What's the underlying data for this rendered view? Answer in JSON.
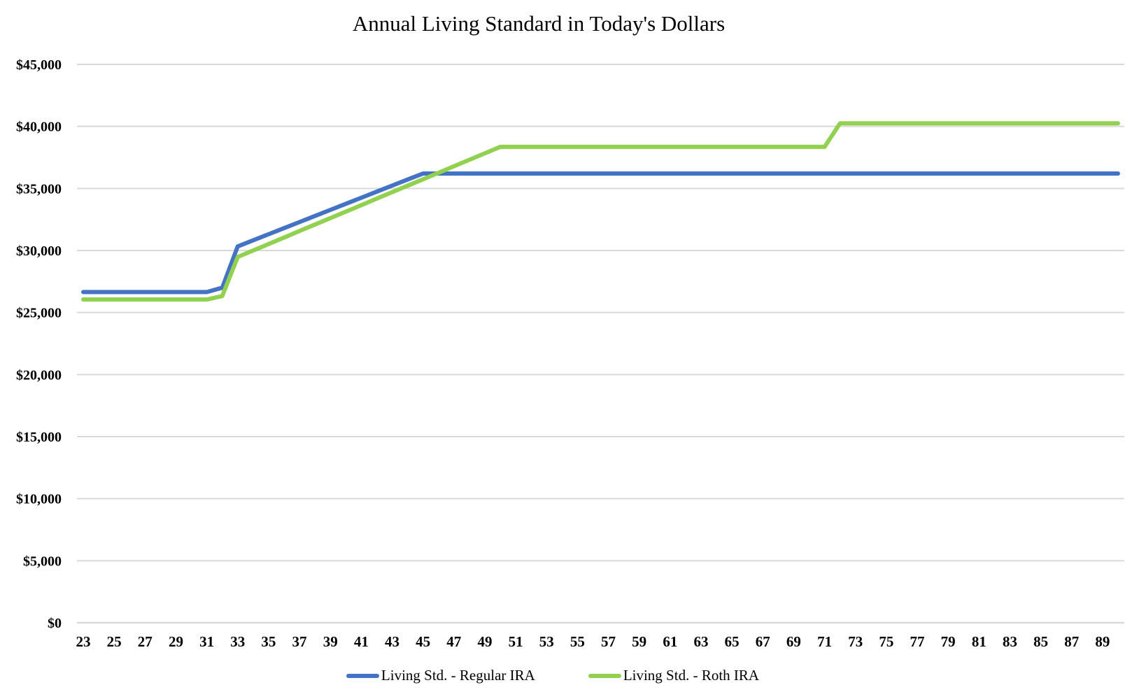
{
  "chart_data": {
    "type": "line",
    "title": "Annual Living Standard in Today's Dollars",
    "xlabel": "",
    "ylabel": "",
    "grid": true,
    "gridline_color": "#D9D9D9",
    "text_color": "#000000",
    "background_color": "#ffffff",
    "legend_position": "bottom",
    "ylim": [
      0,
      45000
    ],
    "y_tick_step": 5000,
    "y_ticks": [
      {
        "value": 0,
        "label": "$0"
      },
      {
        "value": 5000,
        "label": "$5,000"
      },
      {
        "value": 10000,
        "label": "$10,000"
      },
      {
        "value": 15000,
        "label": "$15,000"
      },
      {
        "value": 20000,
        "label": "$20,000"
      },
      {
        "value": 25000,
        "label": "$25,000"
      },
      {
        "value": 30000,
        "label": "$30,000"
      },
      {
        "value": 35000,
        "label": "$35,000"
      },
      {
        "value": 40000,
        "label": "$40,000"
      },
      {
        "value": 45000,
        "label": "$45,000"
      }
    ],
    "x": [
      23,
      24,
      25,
      26,
      27,
      28,
      29,
      30,
      31,
      32,
      33,
      34,
      35,
      36,
      37,
      38,
      39,
      40,
      41,
      42,
      43,
      44,
      45,
      46,
      47,
      48,
      49,
      50,
      51,
      52,
      53,
      54,
      55,
      56,
      57,
      58,
      59,
      60,
      61,
      62,
      63,
      64,
      65,
      66,
      67,
      68,
      69,
      70,
      71,
      72,
      73,
      74,
      75,
      76,
      77,
      78,
      79,
      80,
      81,
      82,
      83,
      84,
      85,
      86,
      87,
      88,
      89,
      90
    ],
    "x_ticks": [
      23,
      25,
      27,
      29,
      31,
      33,
      35,
      37,
      39,
      41,
      43,
      45,
      47,
      49,
      51,
      53,
      55,
      57,
      59,
      61,
      63,
      65,
      67,
      69,
      71,
      73,
      75,
      77,
      79,
      81,
      83,
      85,
      87,
      89
    ],
    "series": [
      {
        "name": "Living Std. - Regular IRA",
        "color": "#4472C4",
        "values": [
          26650,
          26650,
          26650,
          26650,
          26650,
          26650,
          26650,
          26650,
          26650,
          27000,
          30330,
          30820,
          31310,
          31800,
          32290,
          32780,
          33270,
          33760,
          34250,
          34740,
          35230,
          35720,
          36200,
          36200,
          36200,
          36200,
          36200,
          36200,
          36200,
          36200,
          36200,
          36200,
          36200,
          36200,
          36200,
          36200,
          36200,
          36200,
          36200,
          36200,
          36200,
          36200,
          36200,
          36200,
          36200,
          36200,
          36200,
          36200,
          36200,
          36200,
          36200,
          36200,
          36200,
          36200,
          36200,
          36200,
          36200,
          36200,
          36200,
          36200,
          36200,
          36200,
          36200,
          36200,
          36200,
          36200,
          36200,
          36200
        ]
      },
      {
        "name": "Living Std. - Roth IRA",
        "color": "#92D050",
        "values": [
          26050,
          26050,
          26050,
          26050,
          26050,
          26050,
          26050,
          26050,
          26050,
          26330,
          29480,
          30000,
          30520,
          31040,
          31570,
          32090,
          32610,
          33130,
          33650,
          34180,
          34700,
          35220,
          35740,
          36260,
          36790,
          37310,
          37830,
          38350,
          38350,
          38350,
          38350,
          38350,
          38350,
          38350,
          38350,
          38350,
          38350,
          38350,
          38350,
          38350,
          38350,
          38350,
          38350,
          38350,
          38350,
          38350,
          38350,
          38350,
          38350,
          40250,
          40250,
          40250,
          40250,
          40250,
          40250,
          40250,
          40250,
          40250,
          40250,
          40250,
          40250,
          40250,
          40250,
          40250,
          40250,
          40250,
          40250,
          40250
        ]
      }
    ]
  }
}
